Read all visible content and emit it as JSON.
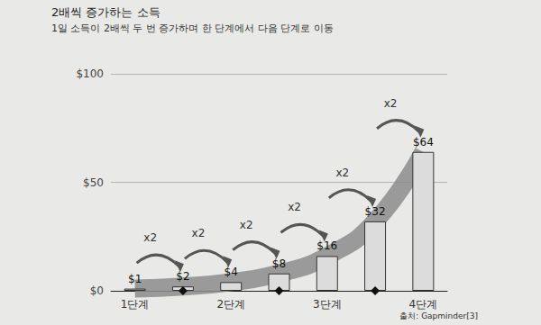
{
  "chart_data": {
    "type": "bar",
    "title": "2배씩 증가하는 소득",
    "subtitle": "1일 소득이 2배씩 두 번 증가하며 한 단계에서 다음 단계로 이동",
    "categories": [
      "1단계",
      null,
      "2단계",
      null,
      "3단계",
      null,
      "4단계"
    ],
    "values": [
      1,
      2,
      4,
      8,
      16,
      32,
      64
    ],
    "value_labels": [
      "$1",
      "$2",
      "$4",
      "$8",
      "$16",
      "$32",
      "$64"
    ],
    "data_labels": true,
    "color": "#dcdcdc",
    "ylim": [
      0,
      100
    ],
    "yticks": [
      {
        "value": 0,
        "label": "$0"
      },
      {
        "value": 50,
        "label": "$50"
      },
      {
        "value": 100,
        "label": "$100"
      }
    ],
    "grid": true,
    "step_labels": [
      "x2",
      "x2",
      "x2",
      "x2",
      "x2",
      "x2"
    ],
    "source": "출처: Gapminder[3]"
  }
}
